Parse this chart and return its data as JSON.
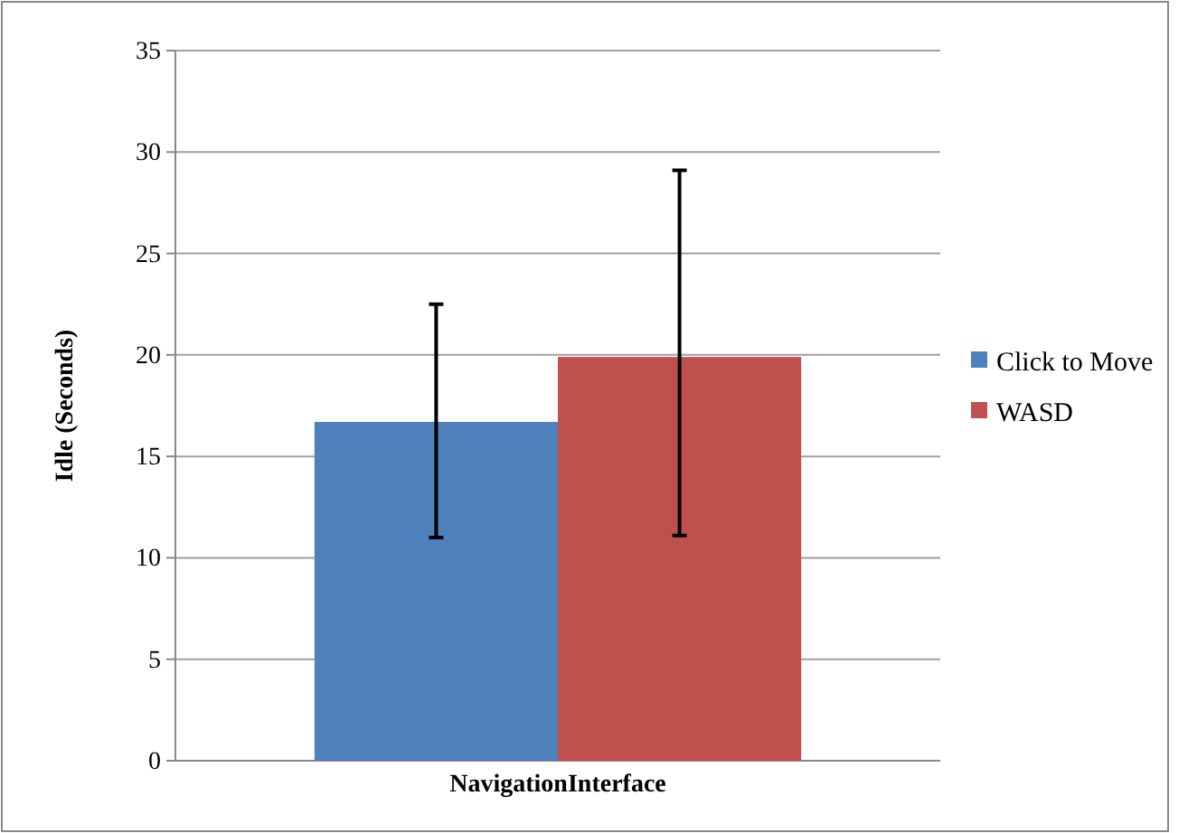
{
  "chart_data": {
    "type": "bar",
    "ylabel": "Idle (Seconds)",
    "categories": [
      "NavigationInterface"
    ],
    "series": [
      {
        "name": "Click to Move",
        "color": "#4f81bd",
        "values": [
          16.7
        ],
        "errors": [
          [
            11.0,
            22.5
          ]
        ]
      },
      {
        "name": "WASD",
        "color": "#c0504d",
        "values": [
          19.9
        ],
        "errors": [
          [
            11.1,
            29.1
          ]
        ]
      }
    ],
    "ylim": [
      0,
      35
    ],
    "yticks": [
      0,
      5,
      10,
      15,
      20,
      25,
      30,
      35
    ],
    "grid": "y",
    "legend": "right"
  }
}
